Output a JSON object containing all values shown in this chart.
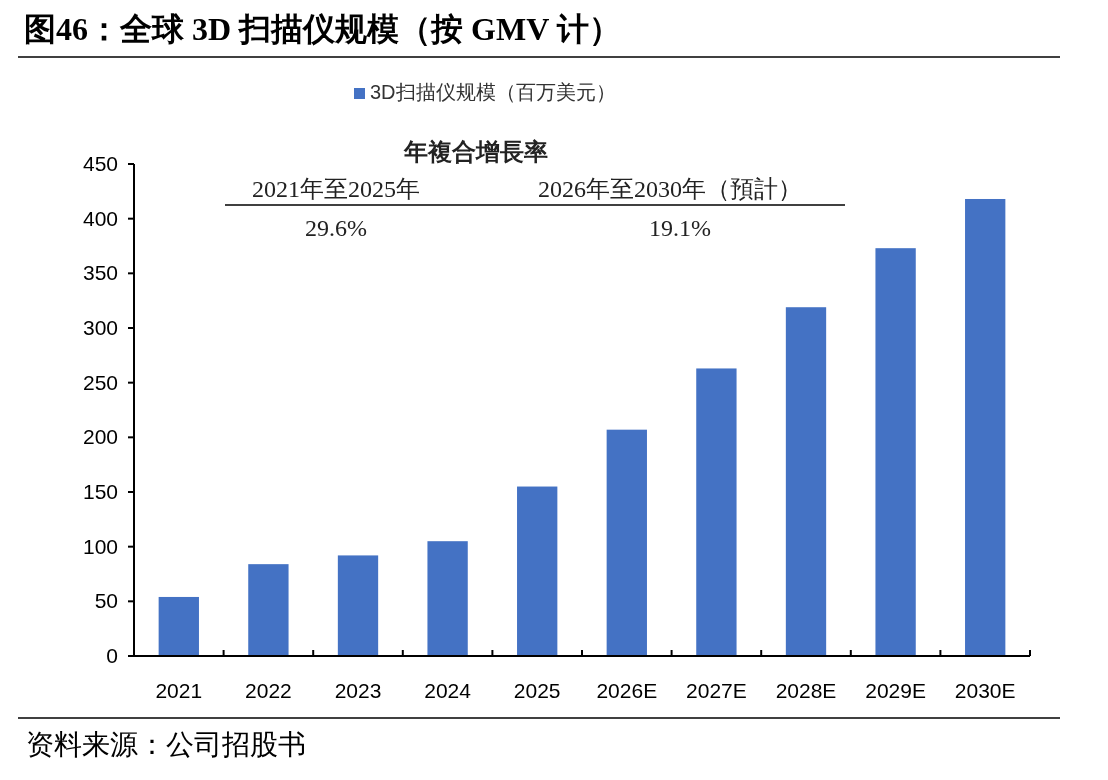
{
  "chart_data": {
    "type": "bar",
    "title": "图46：全球 3D 扫描仪规模（按 GMV 计）",
    "categories": [
      "2021",
      "2022",
      "2023",
      "2024",
      "2025",
      "2026E",
      "2027E",
      "2028E",
      "2029E",
      "2030E"
    ],
    "series": [
      {
        "name": "3D扫描仪规模（百万美元）",
        "color": "#4472c4",
        "values": [
          54,
          84,
          92,
          105,
          155,
          207,
          263,
          319,
          373,
          418
        ]
      }
    ],
    "ylim": [
      0,
      450
    ],
    "yticks": [
      0,
      50,
      100,
      150,
      200,
      250,
      300,
      350,
      400,
      450
    ],
    "grid": false,
    "legend": "top",
    "annotations": [
      "年複合增長率",
      "2021年至2025年",
      "2026年至2030年（預計）",
      "29.6%",
      "19.1%",
      "资料来源：公司招股书"
    ]
  }
}
